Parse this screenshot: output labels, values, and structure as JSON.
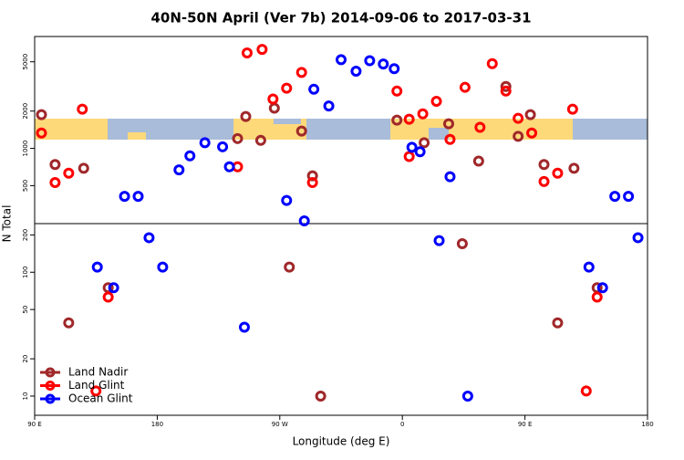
{
  "chart_data": {
    "type": "scatter",
    "title": "40N-50N April (Ver 7b)   2014-09-06 to 2017-03-31",
    "xlabel": "Longitude (deg E)",
    "ylabel": "N Total",
    "log_y": true,
    "legend": "bottom-left",
    "xlim": [
      -270,
      180
    ],
    "xticks": [
      {
        "value": -270,
        "label": "90 E"
      },
      {
        "value": -180,
        "label": "180"
      },
      {
        "value": -90,
        "label": "90 W"
      },
      0,
      {
        "value": 90,
        "label": "90 E"
      },
      {
        "value": 180,
        "label": "180"
      }
    ],
    "ylim": [
      7,
      8000
    ],
    "yticks": [
      10,
      20,
      50,
      100,
      200,
      500,
      1000,
      2000,
      5000
    ],
    "series": [
      {
        "name": "Land Nadir",
        "color": "#a0282a",
        "x": [
          -265,
          -255,
          -234,
          -245,
          -216,
          -121,
          -115,
          -104,
          -94,
          -83,
          -74,
          -66,
          -60,
          -4,
          16,
          34,
          44,
          56,
          76,
          85,
          94,
          104,
          114,
          126,
          143
        ],
        "values": [
          1870,
          740,
          690,
          39,
          75,
          1200,
          1810,
          1160,
          2110,
          110,
          1380,
          600,
          10,
          1690,
          1110,
          1580,
          170,
          790,
          3160,
          1250,
          1870,
          740,
          39,
          690,
          75
        ]
      },
      {
        "name": "Land Glint",
        "color": "#ff0000",
        "x": [
          -265,
          -255,
          -245,
          -235,
          -225,
          -216,
          -121,
          -114,
          -103,
          -95,
          -85,
          -74,
          -66,
          -4,
          5,
          5,
          15,
          25,
          35,
          46,
          57,
          66,
          76,
          85,
          95,
          104,
          114,
          125,
          135,
          143
        ],
        "values": [
          1330,
          530,
          630,
          2070,
          11,
          63,
          710,
          5900,
          6300,
          2500,
          3060,
          4100,
          530,
          2900,
          1720,
          860,
          1900,
          2400,
          1180,
          3110,
          1480,
          4830,
          2900,
          1750,
          1330,
          540,
          630,
          2070,
          11,
          63
        ]
      },
      {
        "name": "Ocean Glint",
        "color": "#0000ff",
        "x": [
          -224,
          -212,
          -204,
          -194,
          -186,
          -176,
          -164,
          -156,
          -145,
          -132,
          -127,
          -116,
          -85,
          -72,
          -65,
          -54,
          -45,
          -34,
          -24,
          -14,
          -6,
          7,
          13,
          27,
          35,
          48,
          137,
          147,
          156,
          166,
          173
        ],
        "values": [
          110,
          75,
          410,
          410,
          190,
          110,
          670,
          870,
          1110,
          1030,
          710,
          36,
          380,
          260,
          3000,
          2200,
          5200,
          4200,
          5100,
          4800,
          4400,
          1020,
          940,
          180,
          590,
          10,
          110,
          75,
          410,
          410,
          190
        ]
      }
    ]
  }
}
